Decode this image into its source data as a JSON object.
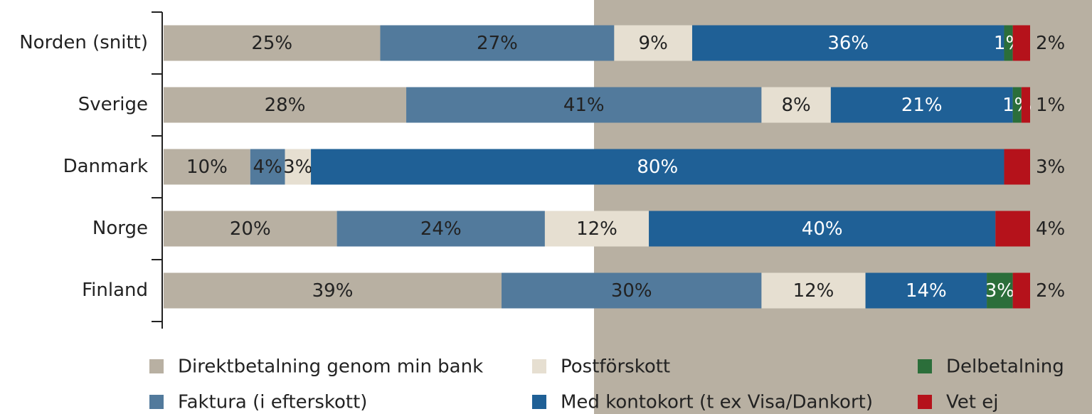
{
  "chart_data": {
    "type": "stacked-barh",
    "categories": [
      "Norden (snitt)",
      "Sverige",
      "Danmark",
      "Norge",
      "Finland"
    ],
    "xlim": [
      0,
      100
    ],
    "series": [
      {
        "name": "Direktbetalning genom min bank",
        "color": "#b8b0a2",
        "values": [
          25,
          28,
          10,
          20,
          39
        ],
        "value_labels": [
          "25%",
          "28%",
          "10%",
          "20%",
          "39%"
        ]
      },
      {
        "name": "Faktura (i efterskott)",
        "color": "#527a9c",
        "values": [
          27,
          41,
          4,
          24,
          30
        ],
        "value_labels": [
          "27%",
          "41%",
          "4%",
          "24%",
          "30%"
        ]
      },
      {
        "name": "Postförskott",
        "color": "#e6dfd1",
        "values": [
          9,
          8,
          3,
          12,
          12
        ],
        "value_labels": [
          "9%",
          "8%",
          "3%",
          "12%",
          "12%"
        ]
      },
      {
        "name": "Med kontokort (t ex Visa/Dankort)",
        "color": "#1f6096",
        "values": [
          36,
          21,
          80,
          40,
          14
        ],
        "value_labels": [
          "36%",
          "21%",
          "80%",
          "40%",
          "14%"
        ]
      },
      {
        "name": "Delbetalning",
        "color": "#2b6e3a",
        "values": [
          1,
          1,
          null,
          null,
          3
        ],
        "value_labels": [
          "1%",
          "1%",
          null,
          null,
          "3%"
        ]
      },
      {
        "name": "Vet ej",
        "color": "#b5121b",
        "values": [
          2,
          1,
          3,
          4,
          2
        ],
        "value_labels": [
          "2%",
          "1%",
          "3%",
          "4%",
          "2%"
        ]
      }
    ]
  }
}
